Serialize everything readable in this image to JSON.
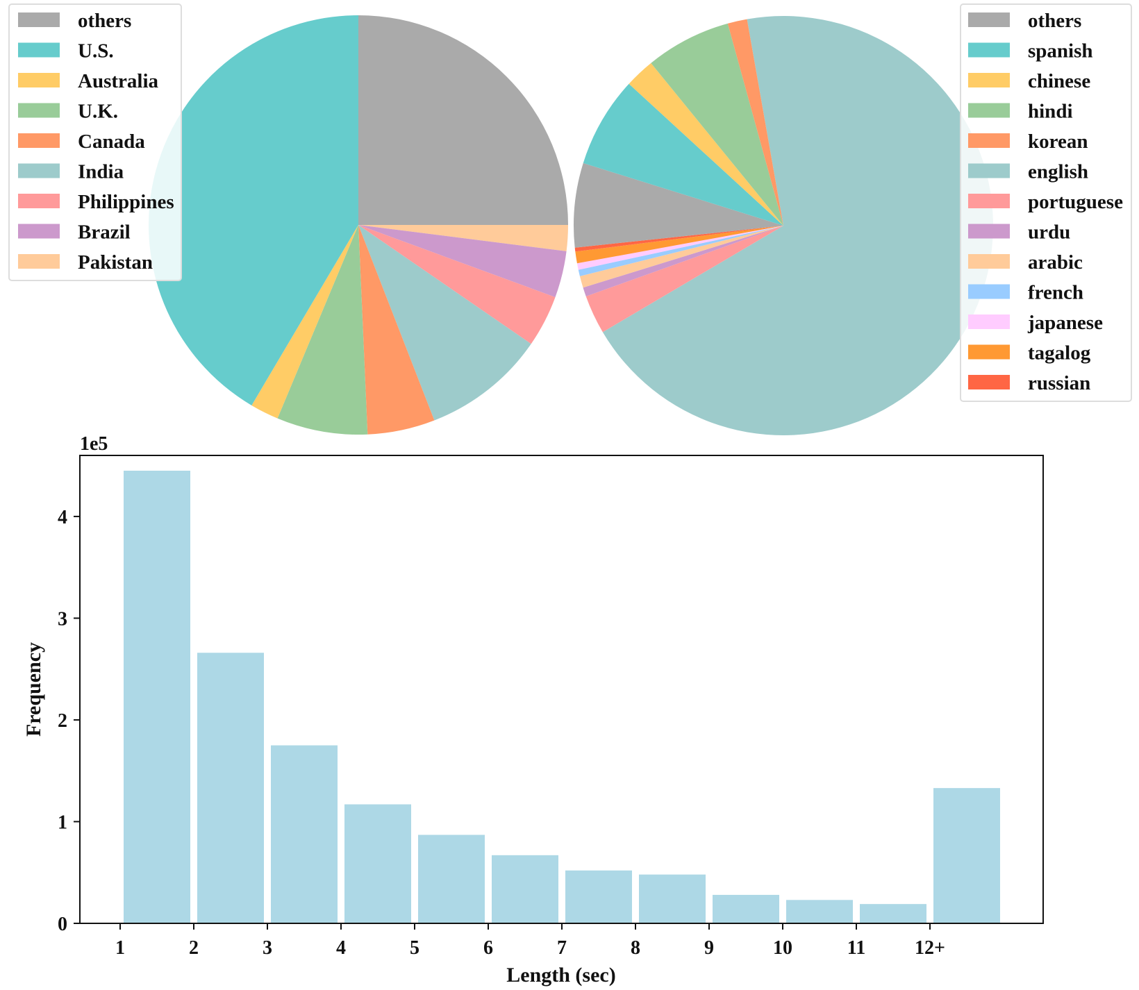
{
  "chart_data": [
    {
      "type": "pie",
      "title": "",
      "start_angle_deg": 90,
      "direction": "clockwise",
      "legend": {
        "placement": "top-left"
      },
      "slices": [
        {
          "label": "others",
          "value": 25.0,
          "color": "#aaaaaa"
        },
        {
          "label": "pakistan_slot",
          "value": 0,
          "color": "#ffcb9a"
        },
        {
          "label": "brazil_slot",
          "value": 0,
          "color": "#cc99cc"
        },
        {
          "label": "philippines_slot",
          "value": 0,
          "color": "#ff9a9a"
        },
        {
          "label": "india_slot",
          "value": 0,
          "color": "#9dcbcb"
        },
        {
          "label": "canada_slot",
          "value": 0,
          "color": "#ff9966"
        },
        {
          "label": "uk_slot",
          "value": 0,
          "color": "#99cc99"
        },
        {
          "label": "australia_slot",
          "value": 0,
          "color": "#ffcc66"
        },
        {
          "label": "us_slot",
          "value": 0,
          "color": "#66cccc"
        }
      ],
      "legend_entries": [
        {
          "label": "others",
          "color": "#aaaaaa",
          "value": 25.0
        },
        {
          "label": "U.S.",
          "color": "#66cccc",
          "value": 41.5
        },
        {
          "label": "Australia",
          "color": "#ffcc66",
          "value": 2.2
        },
        {
          "label": "U.K.",
          "color": "#99cc99",
          "value": 7.0
        },
        {
          "label": "Canada",
          "color": "#ff9966",
          "value": 5.2
        },
        {
          "label": "India",
          "color": "#9dcbcb",
          "value": 9.5
        },
        {
          "label": "Philippines",
          "color": "#ff9a9a",
          "value": 4.0
        },
        {
          "label": "Brazil",
          "color": "#cc99cc",
          "value": 3.6
        },
        {
          "label": "Pakistan",
          "color": "#ffcb9a",
          "value": 2.0
        }
      ],
      "draw_order": [
        "others",
        "Pakistan",
        "Brazil",
        "Philippines",
        "India",
        "Canada",
        "U.K.",
        "Australia",
        "U.S."
      ]
    },
    {
      "type": "pie",
      "title": "",
      "start_angle_deg": 100,
      "direction": "clockwise",
      "legend": {
        "placement": "top-right"
      },
      "legend_entries": [
        {
          "label": "others",
          "color": "#aaaaaa",
          "value": 6.5
        },
        {
          "label": "spanish",
          "color": "#66cccc",
          "value": 7.0
        },
        {
          "label": "chinese",
          "color": "#ffcc66",
          "value": 2.3
        },
        {
          "label": "hindi",
          "color": "#99cc99",
          "value": 6.6
        },
        {
          "label": "korean",
          "color": "#ff9966",
          "value": 1.5
        },
        {
          "label": "english",
          "color": "#9dcbcb",
          "value": 69.3
        },
        {
          "label": "portuguese",
          "color": "#ff9a9a",
          "value": 3.0
        },
        {
          "label": "urdu",
          "color": "#cc99cc",
          "value": 0.7
        },
        {
          "label": "arabic",
          "color": "#ffcb9a",
          "value": 0.9
        },
        {
          "label": "french",
          "color": "#99ccff",
          "value": 0.5
        },
        {
          "label": "japanese",
          "color": "#ffccff",
          "value": 0.5
        },
        {
          "label": "tagalog",
          "color": "#ff9933",
          "value": 0.9
        },
        {
          "label": "russian",
          "color": "#ff6644",
          "value": 0.3
        }
      ],
      "draw_order": [
        "english",
        "portuguese",
        "urdu",
        "arabic",
        "french",
        "japanese",
        "tagalog",
        "russian",
        "others",
        "spanish",
        "chinese",
        "hindi",
        "korean"
      ]
    },
    {
      "type": "bar",
      "title": "",
      "xlabel": "Length (sec)",
      "ylabel": "Frequency",
      "y_offset_text": "1e5",
      "categories": [
        "1",
        "2",
        "3",
        "4",
        "5",
        "6",
        "7",
        "8",
        "9",
        "10",
        "11",
        "12+"
      ],
      "values": [
        4.45,
        2.66,
        1.75,
        1.17,
        0.87,
        0.67,
        0.52,
        0.48,
        0.28,
        0.23,
        0.19,
        1.33
      ],
      "value_unit_multiplier": 100000,
      "yticks": [
        "0",
        "1",
        "2",
        "3",
        "4"
      ],
      "ylim": [
        0,
        4.6
      ],
      "bar_color": "#add8e6",
      "grid": false
    }
  ]
}
